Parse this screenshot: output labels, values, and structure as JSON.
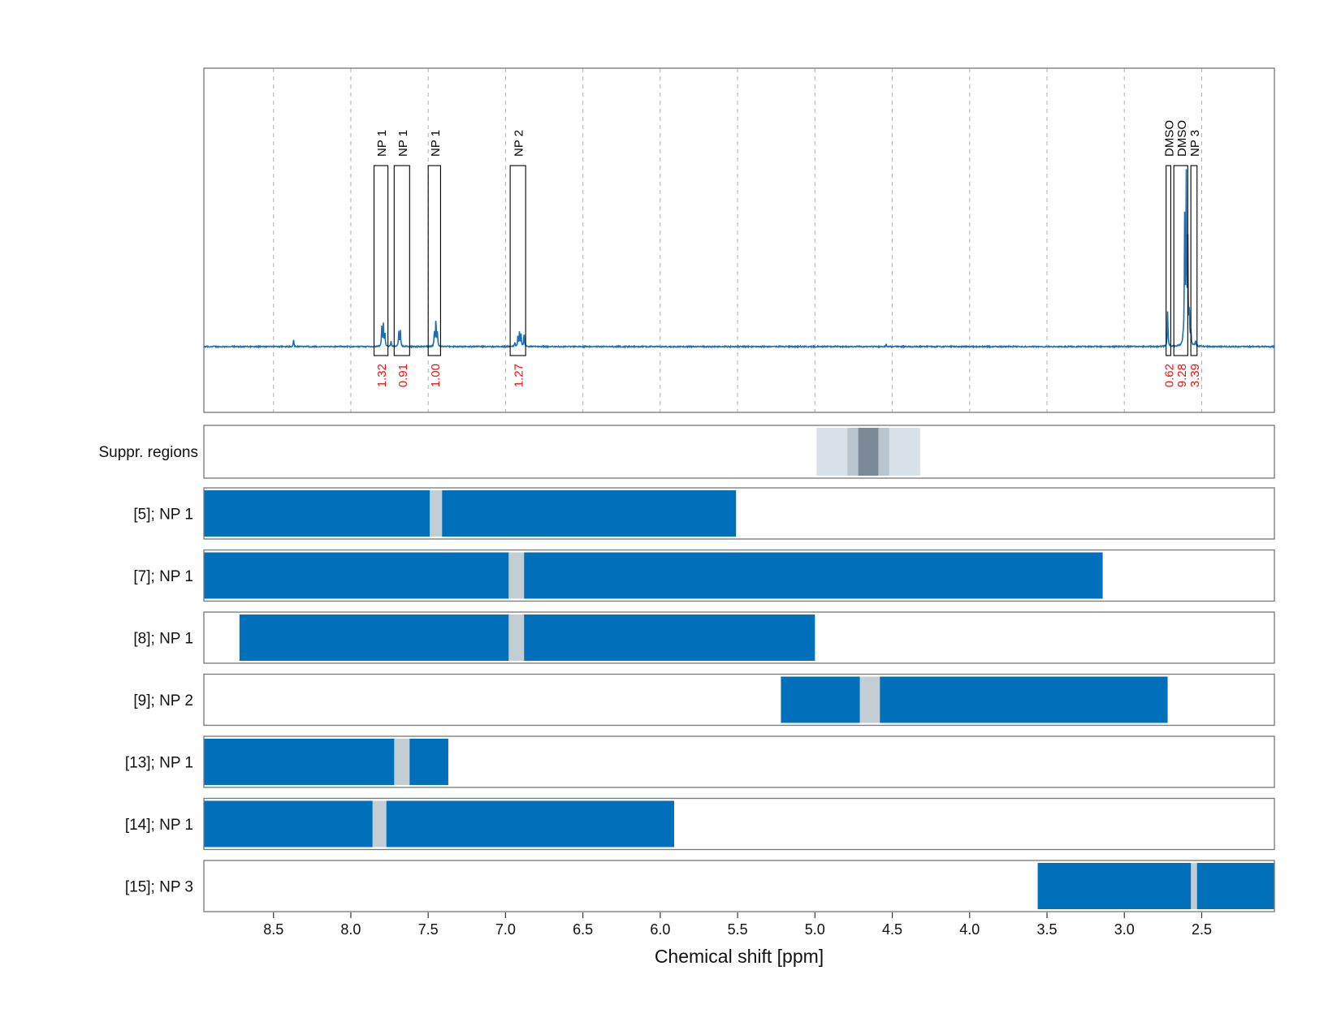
{
  "chart_data": {
    "type": "nmr-spectrum-with-ranges",
    "xlabel": "Chemical shift [ppm]",
    "xlim": [
      8.95,
      2.03
    ],
    "x_ticks": [
      8.5,
      8.0,
      7.5,
      7.0,
      6.5,
      6.0,
      5.5,
      5.0,
      4.5,
      4.0,
      3.5,
      3.0,
      2.5
    ],
    "x_tick_labels": [
      "8.5",
      "8.0",
      "7.5",
      "7.0",
      "6.5",
      "6.0",
      "5.5",
      "5.0",
      "4.5",
      "4.0",
      "3.5",
      "3.0",
      "2.5"
    ],
    "grid": "vertical dashed",
    "spectrum": {
      "color": "#1f6fb5",
      "peaks": [
        {
          "ppm": 8.37,
          "height": 0.025
        },
        {
          "ppm": 7.8,
          "height": 0.07
        },
        {
          "ppm": 7.79,
          "height": 0.08
        },
        {
          "ppm": 7.78,
          "height": 0.05
        },
        {
          "ppm": 7.74,
          "height": 0.02
        },
        {
          "ppm": 7.69,
          "height": 0.055
        },
        {
          "ppm": 7.68,
          "height": 0.06
        },
        {
          "ppm": 7.46,
          "height": 0.055
        },
        {
          "ppm": 7.45,
          "height": 0.1
        },
        {
          "ppm": 7.44,
          "height": 0.05
        },
        {
          "ppm": 6.94,
          "height": 0.015
        },
        {
          "ppm": 6.92,
          "height": 0.04
        },
        {
          "ppm": 6.91,
          "height": 0.05
        },
        {
          "ppm": 6.9,
          "height": 0.045
        },
        {
          "ppm": 6.88,
          "height": 0.05
        },
        {
          "ppm": 4.54,
          "height": 0.008
        },
        {
          "ppm": 2.72,
          "height": 0.13
        },
        {
          "ppm": 2.62,
          "height": 0.02
        },
        {
          "ppm": 2.61,
          "height": 0.45
        },
        {
          "ppm": 2.6,
          "height": 0.6
        },
        {
          "ppm": 2.59,
          "height": 0.4
        },
        {
          "ppm": 2.58,
          "height": 0.12
        },
        {
          "ppm": 2.57,
          "height": 0.05
        },
        {
          "ppm": 2.54,
          "height": 0.02
        }
      ]
    },
    "peak_regions": [
      {
        "label": "NP 1",
        "from": 7.85,
        "to": 7.76,
        "integral": "1.32"
      },
      {
        "label": "NP 1",
        "from": 7.72,
        "to": 7.62,
        "integral": "0.91"
      },
      {
        "label": "NP 1",
        "from": 7.5,
        "to": 7.42,
        "integral": "1.00"
      },
      {
        "label": "NP 2",
        "from": 6.97,
        "to": 6.87,
        "integral": "1.27"
      },
      {
        "label": "DMSO",
        "from": 2.73,
        "to": 2.7,
        "integral": "0.62"
      },
      {
        "label": "DMSO",
        "from": 2.68,
        "to": 2.59,
        "integral": "9.28"
      },
      {
        "label": "NP 3",
        "from": 2.57,
        "to": 2.53,
        "integral": "3.39"
      }
    ],
    "suppression_label": "Suppr. regions",
    "suppression_regions": [
      {
        "from": 4.99,
        "to": 4.32,
        "shade": "#d9e1e8"
      },
      {
        "from": 4.79,
        "to": 4.52,
        "shade": "#b9c6d0"
      },
      {
        "from": 4.72,
        "to": 4.59,
        "shade": "#7a8b97"
      }
    ],
    "tracks": [
      {
        "label": "[5]; NP 1",
        "from": 8.95,
        "to": 5.51,
        "gap": [
          7.49,
          7.41
        ]
      },
      {
        "label": "[7]; NP 1",
        "from": 8.95,
        "to": 3.14,
        "gap": [
          6.98,
          6.88
        ]
      },
      {
        "label": "[8]; NP 1",
        "from": 8.72,
        "to": 5.0,
        "gap": [
          6.98,
          6.88
        ]
      },
      {
        "label": "[9]; NP 2",
        "from": 5.22,
        "to": 2.72,
        "gap": [
          4.71,
          4.58
        ]
      },
      {
        "label": "[13]; NP 1",
        "from": 8.95,
        "to": 7.37,
        "gap": [
          7.72,
          7.62
        ]
      },
      {
        "label": "[14]; NP 1",
        "from": 8.95,
        "to": 5.91,
        "gap": [
          7.86,
          7.77
        ]
      },
      {
        "label": "[15]; NP 3",
        "from": 3.56,
        "to": 2.03,
        "gap": [
          2.57,
          2.53
        ]
      }
    ],
    "colors": {
      "track": "#0070bb",
      "gap": "#c3cdd4",
      "region_label": "#000000",
      "integral": "#ee1111",
      "frame": "#777777",
      "grid": "#b0b0b0"
    }
  }
}
